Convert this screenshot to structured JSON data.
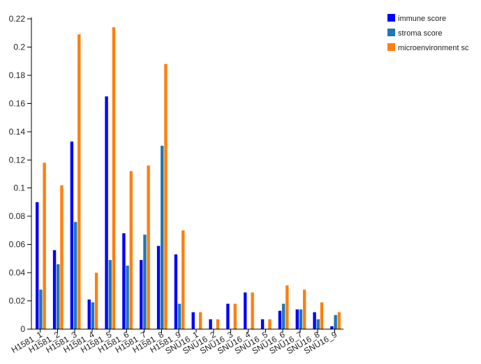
{
  "chart_data": {
    "type": "bar",
    "categories": [
      "H1581_1",
      "H1581_2",
      "H1581_3",
      "H1581_4",
      "H1581_5",
      "H1581_6",
      "H1581_7",
      "H1581_8",
      "H1581_9",
      "SNU16_1",
      "SNU16_2",
      "SNU16_3",
      "SNU16_4",
      "SNU16_5",
      "SNU16_6",
      "SNU16_7",
      "SNU16_8",
      "SNU16_9"
    ],
    "series": [
      {
        "name": "immune score",
        "color": "#0000ff",
        "values": [
          0.09,
          0.056,
          0.133,
          0.021,
          0.165,
          0.068,
          0.049,
          0.059,
          0.053,
          0.012,
          0.007,
          0.018,
          0.026,
          0.007,
          0.013,
          0.014,
          0.012,
          0.002
        ]
      },
      {
        "name": "stroma score",
        "color": "#1f77b4",
        "values": [
          0.028,
          0.046,
          0.076,
          0.019,
          0.049,
          0.045,
          0.067,
          0.13,
          0.018,
          0.0,
          0.0,
          0.0,
          0.0,
          0.0,
          0.018,
          0.014,
          0.007,
          0.01
        ]
      },
      {
        "name": "microenvironment sc",
        "color": "#ff7f0e",
        "values": [
          0.118,
          0.102,
          0.209,
          0.04,
          0.214,
          0.112,
          0.116,
          0.188,
          0.07,
          0.012,
          0.007,
          0.018,
          0.026,
          0.007,
          0.031,
          0.028,
          0.019,
          0.012
        ]
      }
    ],
    "yticks": [
      "0",
      "0.02",
      "0.04",
      "0.06",
      "0.08",
      "0.1",
      "0.12",
      "0.14",
      "0.16",
      "0.18",
      "0.2",
      "0.22"
    ],
    "ylim": [
      0,
      0.22
    ],
    "grid": false,
    "legend_position": "top-right"
  }
}
